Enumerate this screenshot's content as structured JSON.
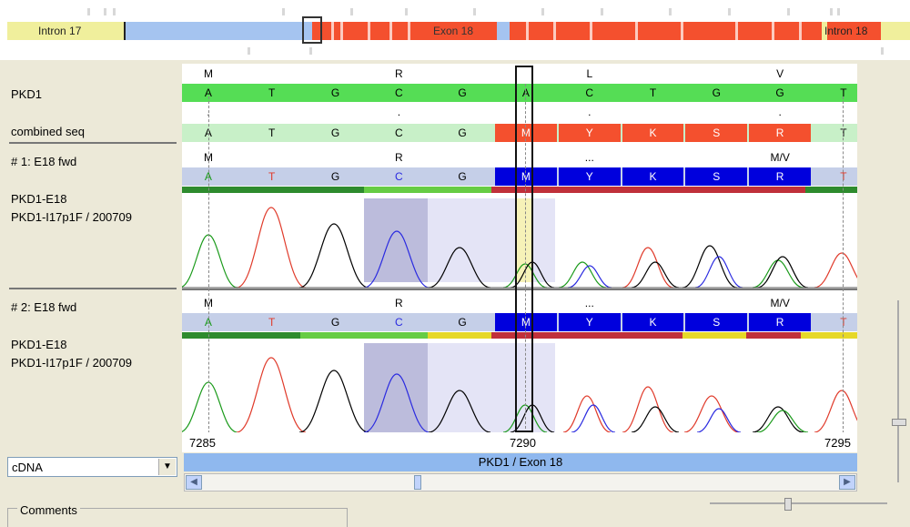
{
  "overview": {
    "labels": [
      "Intron 17",
      "Exon 18",
      "Intron 18"
    ],
    "colors": {
      "intron": "#f0ef9c",
      "blue": "#a5c4f0",
      "exon": "#f4502e",
      "white": "#ffffff"
    }
  },
  "left_labels": {
    "ref": "PKD1",
    "combined": "combined seq",
    "trace1_title": "# 1: E18 fwd",
    "trace1_line1": "PKD1-E18",
    "trace1_line2": "PKD1-I17p1F / 200709",
    "trace2_title": "# 2: E18 fwd",
    "trace2_line1": "PKD1-E18",
    "trace2_line2": "PKD1-I17p1F / 200709"
  },
  "ref_aa": [
    "M",
    "R",
    "L",
    "V"
  ],
  "ref_seq": [
    "A",
    "T",
    "G",
    "C",
    "G",
    "A",
    "C",
    "T",
    "G",
    "G",
    "T"
  ],
  "combined_dots": [
    ".",
    ".",
    ".",
    "."
  ],
  "combined_seq": [
    "A",
    "T",
    "G",
    "C",
    "G",
    "M",
    "Y",
    "K",
    "S",
    "R",
    "T"
  ],
  "trace1_aa": [
    "M",
    "R",
    "...",
    "M/V"
  ],
  "trace1_seq": [
    "A",
    "T",
    "G",
    "C",
    "G",
    "M",
    "Y",
    "K",
    "S",
    "R",
    "T"
  ],
  "trace2_aa": [
    "M",
    "R",
    "...",
    "M/V"
  ],
  "trace2_seq": [
    "A",
    "T",
    "G",
    "C",
    "G",
    "M",
    "Y",
    "K",
    "S",
    "R",
    "T"
  ],
  "axis": {
    "left": "7285",
    "mid": "7290",
    "right": "7295"
  },
  "exon_bar": "PKD1 / Exon 18",
  "dropdown": {
    "value": "cDNA",
    "arrow": "▼"
  },
  "comments_label": "Comments",
  "scroll_left": "◀",
  "scroll_right": "▶",
  "base_colors": {
    "A": "#1a9a1a",
    "C": "#2a2ae0",
    "G": "#000000",
    "T": "#e03a2a"
  },
  "colors": {
    "ref_green": "#55dd55",
    "combined_light": "#c8f0c8",
    "combined_amb": "#f4502e",
    "trace_lavender": "#c5cfe8",
    "trace_amb": "#0000dd",
    "quality_good": "#2e8b2e",
    "quality_mid": "#66cc44",
    "quality_bad": "#c0303a",
    "quality_yellow": "#e6d828",
    "highlight_gray": "#bcbcdc",
    "highlight_light": "#e4e4f6",
    "highlight_yellow": "#f6f2b8"
  }
}
